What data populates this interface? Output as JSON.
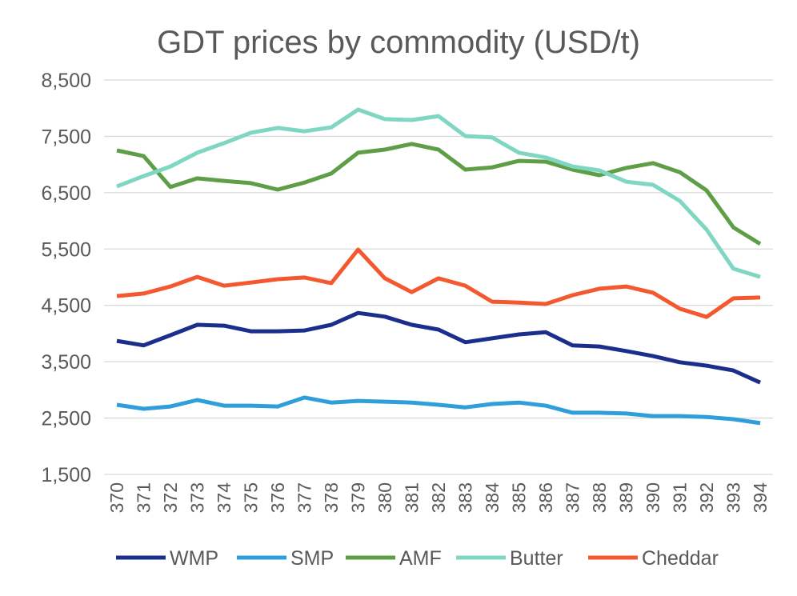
{
  "chart_data": {
    "type": "line",
    "title": "GDT prices by commodity (USD/t)",
    "xlabel": "",
    "ylabel": "",
    "x": [
      "370",
      "371",
      "372",
      "373",
      "374",
      "375",
      "376",
      "377",
      "378",
      "379",
      "380",
      "381",
      "382",
      "383",
      "384",
      "385",
      "386",
      "387",
      "388",
      "389",
      "390",
      "391",
      "392",
      "393",
      "394"
    ],
    "ylim": [
      1500,
      8500
    ],
    "yticks": [
      1500,
      2500,
      3500,
      4500,
      5500,
      6500,
      7500,
      8500
    ],
    "ytick_labels": [
      "1,500",
      "2,500",
      "3,500",
      "4,500",
      "5,500",
      "6,500",
      "7,500",
      "8,500"
    ],
    "grid": true,
    "legend_position": "bottom",
    "series": [
      {
        "name": "WMP",
        "color": "#1b2e8c",
        "values": [
          3870,
          3790,
          3970,
          4155,
          4140,
          4040,
          4040,
          4055,
          4155,
          4365,
          4300,
          4155,
          4070,
          3845,
          3915,
          3985,
          4025,
          3790,
          3770,
          3690,
          3600,
          3490,
          3430,
          3345,
          3130
        ]
      },
      {
        "name": "SMP",
        "color": "#2f9edb",
        "values": [
          2735,
          2665,
          2705,
          2820,
          2720,
          2720,
          2705,
          2865,
          2775,
          2805,
          2790,
          2775,
          2735,
          2690,
          2750,
          2775,
          2720,
          2595,
          2595,
          2580,
          2535,
          2535,
          2520,
          2480,
          2410
        ]
      },
      {
        "name": "AMF",
        "color": "#5e9e46",
        "values": [
          7250,
          7150,
          6600,
          6755,
          6710,
          6670,
          6555,
          6680,
          6840,
          7210,
          7265,
          7365,
          7265,
          6910,
          6950,
          7065,
          7050,
          6910,
          6810,
          6940,
          7025,
          6865,
          6540,
          5885,
          5590
        ]
      },
      {
        "name": "Butter",
        "color": "#7fd7c3",
        "values": [
          6610,
          6795,
          6965,
          7210,
          7380,
          7565,
          7650,
          7590,
          7660,
          7975,
          7805,
          7790,
          7860,
          7505,
          7480,
          7210,
          7125,
          6965,
          6895,
          6695,
          6640,
          6355,
          5845,
          5150,
          5005
        ]
      },
      {
        "name": "Cheddar",
        "color": "#f4582f",
        "values": [
          4665,
          4710,
          4835,
          5005,
          4850,
          4905,
          4965,
          4995,
          4895,
          5490,
          4980,
          4735,
          4980,
          4850,
          4565,
          4550,
          4525,
          4680,
          4795,
          4835,
          4725,
          4440,
          4295,
          4625,
          4640
        ]
      }
    ]
  }
}
